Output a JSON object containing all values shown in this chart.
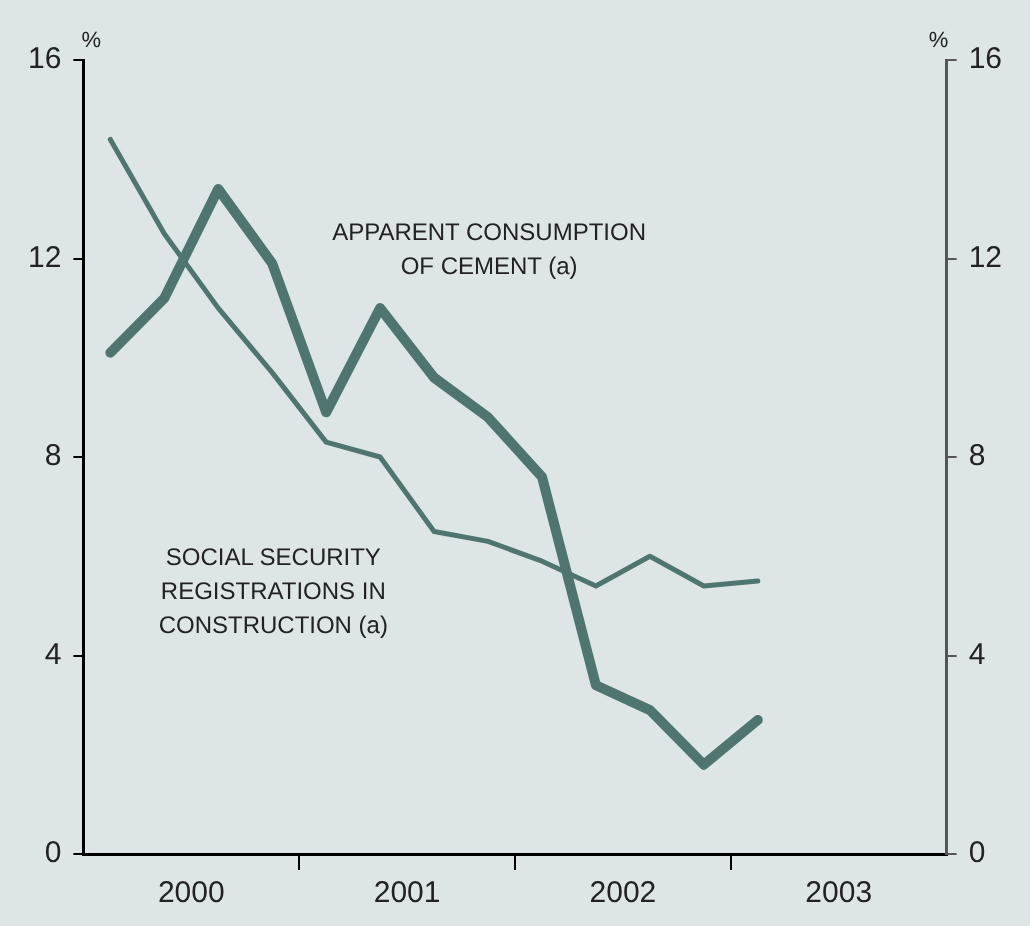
{
  "chart_data": {
    "type": "line",
    "ylabel": "%",
    "y2label": "%",
    "x": [
      2000.125,
      2000.375,
      2000.625,
      2000.875,
      2001.125,
      2001.375,
      2001.625,
      2001.875,
      2002.125,
      2002.375,
      2002.625,
      2002.875,
      2003.125
    ],
    "xlim": [
      2000,
      2004
    ],
    "xticks": [
      {
        "value": 2000.5,
        "label": "2000"
      },
      {
        "value": 2001,
        "label": null
      },
      {
        "value": 2001.5,
        "label": "2001"
      },
      {
        "value": 2002,
        "label": null
      },
      {
        "value": 2002.5,
        "label": "2002"
      },
      {
        "value": 2003,
        "label": null
      },
      {
        "value": 2003.5,
        "label": "2003"
      }
    ],
    "ylim": [
      0,
      16
    ],
    "yticks": [
      0,
      4,
      8,
      12,
      16
    ],
    "y2lim": [
      0,
      16
    ],
    "y2ticks": [
      0,
      4,
      8,
      12,
      16
    ],
    "series": [
      {
        "name": "APPARENT CONSUMPTION OF CEMENT (a)",
        "color": "#4e7570",
        "values": [
          10.1,
          11.2,
          13.4,
          11.9,
          8.9,
          11.0,
          9.6,
          8.8,
          7.6,
          3.4,
          2.9,
          1.8,
          2.7
        ]
      },
      {
        "name": "SOCIAL SECURITY REGISTRATIONS IN CONSTRUCTION (a)",
        "color": "#4e7570",
        "values": [
          14.4,
          12.5,
          11.0,
          9.7,
          8.3,
          8.0,
          6.5,
          6.3,
          5.9,
          5.4,
          6.0,
          5.4,
          5.5
        ]
      }
    ],
    "grid": false,
    "legend": false,
    "marker": "none",
    "line_style": "solid"
  }
}
